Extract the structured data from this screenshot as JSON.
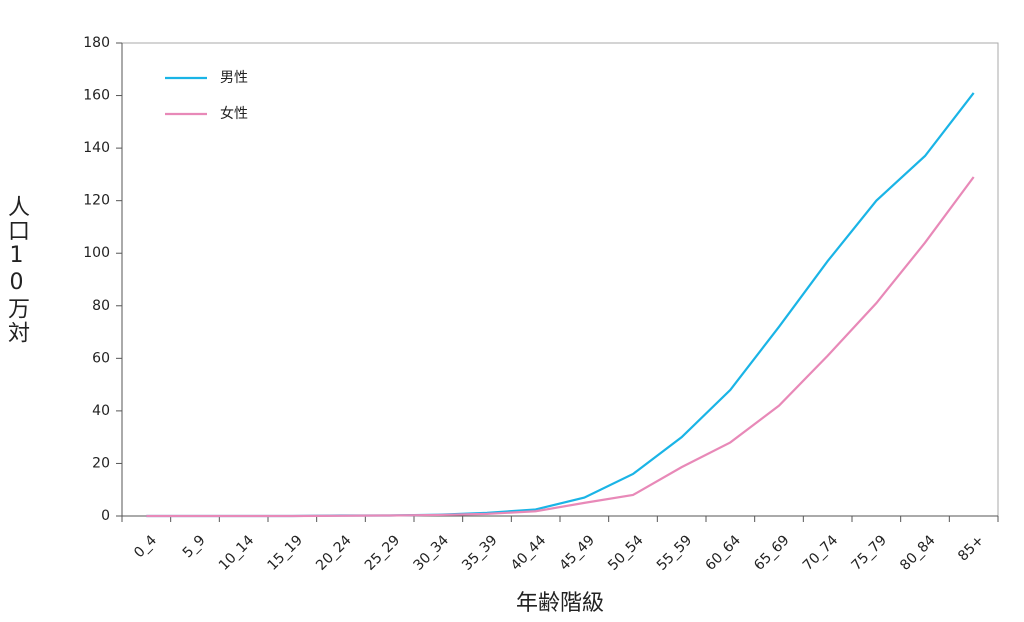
{
  "chart_data": {
    "type": "line",
    "x_label": "年齢階級",
    "y_label": "人口10万対",
    "categories": [
      "0_4",
      "5_9",
      "10_14",
      "15_19",
      "20_24",
      "25_29",
      "30_34",
      "35_39",
      "40_44",
      "45_49",
      "50_54",
      "55_59",
      "60_64",
      "65_69",
      "70_74",
      "75_79",
      "80_84",
      "85+"
    ],
    "series": [
      {
        "name": "男性",
        "color": "#1ab4e6",
        "values": [
          0,
          0,
          0,
          0,
          0.2,
          0.2,
          0.5,
          1.2,
          2.5,
          7,
          16,
          30,
          48,
          72,
          97,
          120,
          137,
          161
        ]
      },
      {
        "name": "女性",
        "color": "#e889b8",
        "values": [
          0,
          0,
          0,
          0,
          0.1,
          0.2,
          0.4,
          0.8,
          1.8,
          5,
          8,
          18.6,
          28,
          42,
          61,
          81,
          104,
          129
        ]
      }
    ],
    "ylim": [
      0,
      180
    ],
    "yticks": [
      0,
      20,
      40,
      60,
      80,
      100,
      120,
      140,
      160,
      180
    ],
    "legend": "upper left"
  }
}
